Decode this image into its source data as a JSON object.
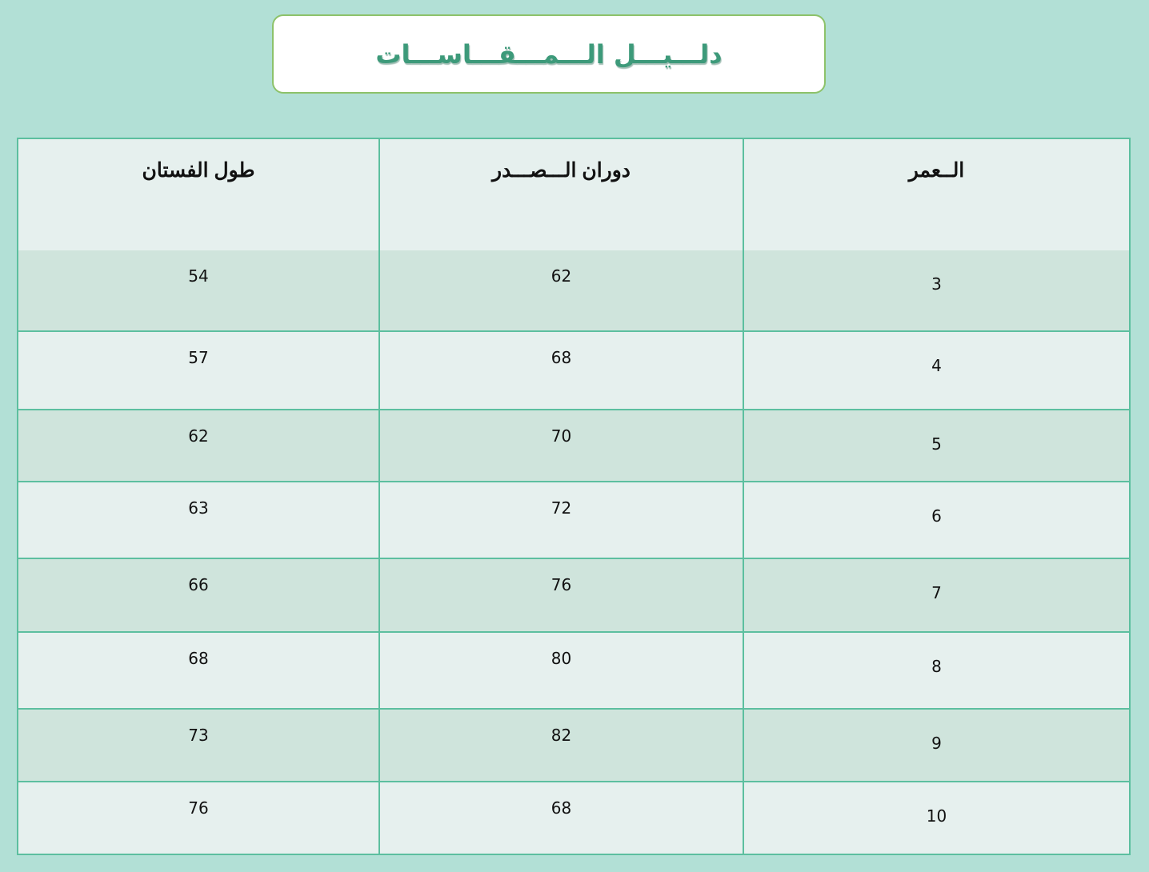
{
  "title": "دلـــيـــل الـــمـــقـــاســـات",
  "colors": {
    "background": "#b2e0d6",
    "title": "#3d9a7a",
    "title_border": "#8dc26a",
    "grid": "#5cbf9f",
    "row_light": "#e6f0ee",
    "row_dark": "#cfe4dc"
  },
  "table": {
    "headers": [
      "الــعمر",
      "دوران الـــصـــدر",
      "طول الفستان"
    ],
    "rows": [
      [
        "3",
        "62",
        "54"
      ],
      [
        "4",
        "68",
        "57"
      ],
      [
        "5",
        "70",
        "62"
      ],
      [
        "6",
        "72",
        "63"
      ],
      [
        "7",
        "76",
        "66"
      ],
      [
        "8",
        "80",
        "68"
      ],
      [
        "9",
        "82",
        "73"
      ],
      [
        "10",
        "68",
        "76"
      ]
    ]
  }
}
